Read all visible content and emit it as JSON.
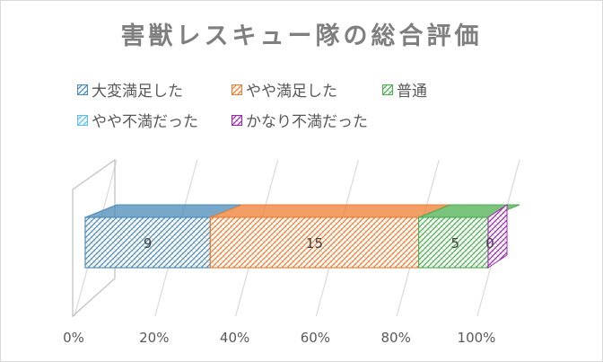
{
  "chart_data": {
    "type": "bar",
    "orientation": "horizontal",
    "stacking": "percent",
    "three_d": true,
    "title": "害獣レスキュー隊の総合評価",
    "xlabel": "",
    "ylabel": "",
    "xlim": [
      0,
      100
    ],
    "x_ticks": [
      "0%",
      "20%",
      "40%",
      "60%",
      "80%",
      "100%"
    ],
    "legend_position": "top",
    "grid": true,
    "series": [
      {
        "name": "大変満足した",
        "values": [
          9
        ],
        "color": "#4a8bb8",
        "label": "9"
      },
      {
        "name": "やや満足した",
        "values": [
          15
        ],
        "color": "#ed7d31",
        "label": "15"
      },
      {
        "name": "普通",
        "values": [
          5
        ],
        "color": "#4caf50",
        "label": "5"
      },
      {
        "name": "やや不満だった",
        "values": [
          0
        ],
        "color": "#5bc0eb",
        "label": ""
      },
      {
        "name": "かなり不満だった",
        "values": [
          0
        ],
        "color": "#9c27b0",
        "label": "0"
      }
    ]
  }
}
